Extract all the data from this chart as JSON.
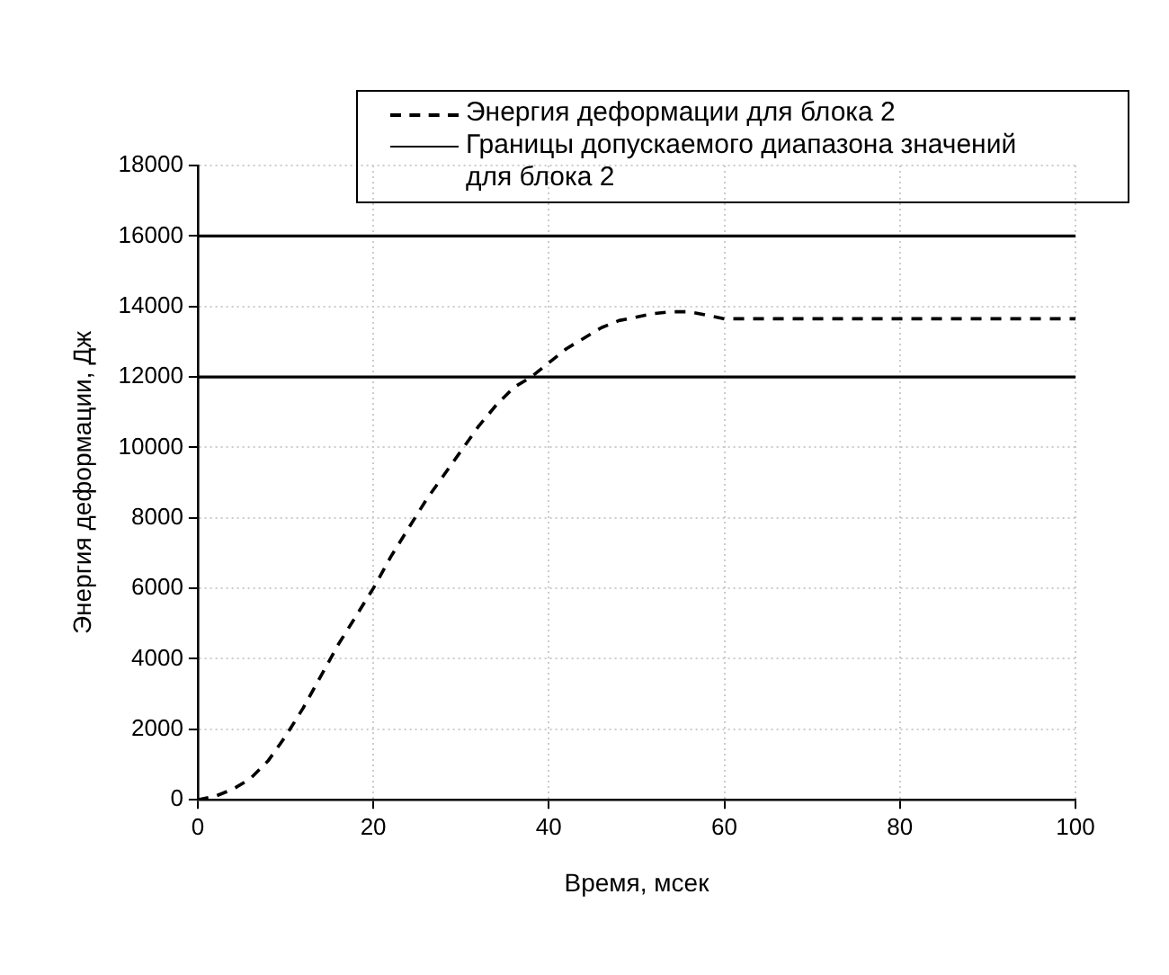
{
  "chart_data": {
    "type": "line",
    "xlabel": "Время, мсек",
    "ylabel": "Энергия деформации, Дж",
    "x": [
      0,
      2,
      4,
      6,
      8,
      10,
      12,
      14,
      16,
      18,
      20,
      22,
      24,
      26,
      28,
      30,
      32,
      34,
      36,
      38,
      40,
      42,
      44,
      46,
      48,
      50,
      52,
      54,
      56,
      58,
      60,
      65,
      70,
      80,
      90,
      100
    ],
    "series": [
      {
        "name": "Энергия деформации для блока 2",
        "color": "#000000",
        "line_style": "dashed",
        "values": [
          0,
          100,
          300,
          600,
          1100,
          1800,
          2600,
          3500,
          4400,
          5200,
          6000,
          6900,
          7700,
          8500,
          9200,
          9900,
          10600,
          11200,
          11700,
          12000,
          12400,
          12800,
          13100,
          13400,
          13600,
          13700,
          13800,
          13850,
          13850,
          13750,
          13650,
          13650,
          13650,
          13650,
          13650,
          13650
        ]
      },
      {
        "name": "Границы допускаемого диапазона значений для блока 2",
        "color": "#000000",
        "line_style": "solid",
        "values": [
          16000,
          16000,
          16000,
          16000,
          16000,
          16000,
          16000,
          16000,
          16000,
          16000,
          16000,
          16000,
          16000,
          16000,
          16000,
          16000,
          16000,
          16000,
          16000,
          16000,
          16000,
          16000,
          16000,
          16000,
          16000,
          16000,
          16000,
          16000,
          16000,
          16000,
          16000,
          16000,
          16000,
          16000,
          16000,
          16000
        ]
      },
      {
        "color": "#000000",
        "line_style": "solid",
        "values": [
          12000,
          12000,
          12000,
          12000,
          12000,
          12000,
          12000,
          12000,
          12000,
          12000,
          12000,
          12000,
          12000,
          12000,
          12000,
          12000,
          12000,
          12000,
          12000,
          12000,
          12000,
          12000,
          12000,
          12000,
          12000,
          12000,
          12000,
          12000,
          12000,
          12000,
          12000,
          12000,
          12000,
          12000,
          12000,
          12000
        ]
      }
    ],
    "xlim": [
      0,
      100
    ],
    "xticks": [
      0,
      20,
      40,
      60,
      80,
      100
    ],
    "ylim": [
      0,
      18000
    ],
    "yticks": [
      0,
      2000,
      4000,
      6000,
      8000,
      10000,
      12000,
      14000,
      16000,
      18000
    ],
    "grid": true,
    "legend": "top right",
    "marker": "none"
  }
}
